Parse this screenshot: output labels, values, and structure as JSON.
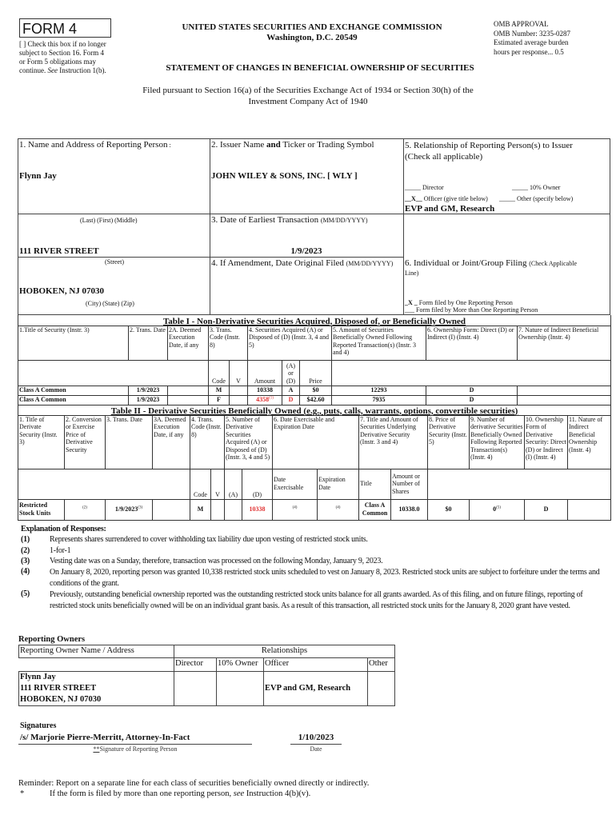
{
  "header": {
    "form_label": "FORM 4",
    "check_box_note": [
      "[ ] Check this box if no longer",
      "subject to Section 16. Form 4",
      "or Form 5 obligations may",
      "continue. "
    ],
    "check_box_see": "See",
    "check_box_tail": " Instruction 1(b).",
    "agency": "UNITED STATES SECURITIES AND EXCHANGE COMMISSION",
    "agency_city": "Washington, D.C. 20549",
    "omb": [
      "OMB APPROVAL",
      "OMB Number: 3235-0287",
      "Estimated average burden",
      "hours per response... 0.5"
    ],
    "statement_title": "STATEMENT OF CHANGES IN BENEFICIAL OWNERSHIP OF SECURITIES",
    "filed_pursuant": [
      "Filed pursuant to Section 16(a) of the Securities Exchange Act of 1934 or Section 30(h) of the",
      "Investment Company Act of 1940"
    ]
  },
  "box1": {
    "label": "1. Name and Address of Reporting Person",
    "label_colon": " :",
    "name": "Flynn Jay",
    "name_hint": "(Last)  (First)  (Middle)",
    "street": "111 RIVER STREET",
    "street_hint": "(Street)",
    "city": "HOBOKEN, NJ 07030",
    "city_hint": "(City)  (State)  (Zip)"
  },
  "box2": {
    "label_a": "2. Issuer Name ",
    "label_and": "and",
    "label_b": " Ticker or Trading Symbol",
    "issuer": "JOHN WILEY & SONS, INC. [ WLY ]"
  },
  "box3": {
    "label": "3. Date of Earliest Transaction ",
    "label_small": "(MM/DD/YYYY)",
    "date": "1/9/2023"
  },
  "box4": {
    "label": "4. If Amendment, Date Original Filed ",
    "label_small": "(MM/DD/YYYY)"
  },
  "box5": {
    "label": [
      "5. Relationship of Reporting Person(s) to Issuer",
      "(Check all applicable)"
    ],
    "director": "_____ Director",
    "ten_pct_owner": "_____ 10% Owner",
    "officer_mark": "__X__",
    "officer": " Officer (give title below)",
    "other": "_____ Other (specify below)",
    "title": "EVP and GM, Research"
  },
  "box6": {
    "label": "6. Individual or Joint/Group Filing ",
    "label_small": "(Check Applicable",
    "label_small2": "Line)",
    "one_person_mark": "_X _",
    "one_person": " Form filed by One Reporting Person",
    "multi_person": "___ Form filed by More than One Reporting Person"
  },
  "table1": {
    "title": "Table I - Non-Derivative Securities Acquired, Disposed of, or Beneficially Owned",
    "headers": [
      "1.Title of Security (Instr. 3)",
      "2. Trans. Date",
      "2A. Deemed Execution Date, if any",
      "3. Trans. Code (Instr. 8)",
      "4. Securities Acquired (A) or Disposed of (D) (Instr. 3, 4 and 5)",
      "5. Amount of Securities Beneficially Owned Following Reported Transaction(s) (Instr. 3 and 4)",
      "6. Ownership Form: Direct (D) or Indirect (I) (Instr. 4)",
      "7. Nature of Indirect Beneficial Ownership (Instr. 4)"
    ],
    "sub_headers": {
      "code": "Code",
      "v": "V",
      "amount": "Amount",
      "a_or_d": "(A) or (D)",
      "price": "Price"
    },
    "rows": [
      {
        "title": "Class A Common",
        "date": "1/9/2023",
        "deemed": "",
        "code": "M",
        "v": "",
        "amount": "10338",
        "amount_fn": "",
        "a_or_d": "A",
        "price": "$0",
        "owned": "12293",
        "form": "D",
        "nature": ""
      },
      {
        "title": "Class A Common",
        "date": "1/9/2023",
        "deemed": "",
        "code": "F",
        "v": "",
        "amount": "4358",
        "amount_fn": "(1)",
        "a_or_d": "D",
        "price": "$42.60",
        "owned": "7935",
        "form": "D",
        "nature": ""
      }
    ]
  },
  "table2": {
    "title": "Table II - Derivative Securities Beneficially Owned (e.g., puts, calls, warrants, options, convertible securities)",
    "headers": [
      "1. Title of Derivate Security (Instr. 3)",
      "2. Conversion or Exercise Price of Derivative Security",
      "3. Trans. Date",
      "3A. Deemed Execution Date, if any",
      "4. Trans. Code (Instr. 8)",
      "5. Number of Derivative Securities Acquired (A) or Disposed of (D) (Instr. 3, 4 and 5)",
      "6. Date Exercisable and Expiration Date",
      "7. Title and Amount of Securities Underlying Derivative Security (Instr. 3 and 4)",
      "8. Price of Derivative Security (Instr. 5)",
      "9. Number of derivative Securities Beneficially Owned Following Reported Transaction(s) (Instr. 4)",
      "10. Ownership Form of Derivative Security: Direct (D) or Indirect (I) (Instr. 4)",
      "11. Nature of Indirect Beneficial Ownership (Instr. 4)"
    ],
    "sub_headers": {
      "code": "Code",
      "v": "V",
      "a": "(A)",
      "d": "(D)",
      "date_exercisable": "Date Exercisable",
      "expiration": "Expiration Date",
      "title": "Title",
      "amount": "Amount or Number of Shares"
    },
    "rows": [
      {
        "title": "Restricted Stock Units",
        "conversion_fn": "(2)",
        "date": "1/9/2023",
        "date_fn": "(3)",
        "deemed": "",
        "code": "M",
        "v": "",
        "a": "",
        "d": "10338",
        "exercisable_fn": "(4)",
        "expiration_fn": "(4)",
        "underlying_title": "Class A Common",
        "underlying_amount": "10338.0",
        "price": "$0",
        "owned": "0",
        "owned_fn": "(5)",
        "form": "D",
        "nature": ""
      }
    ]
  },
  "explanation": {
    "heading": "Explanation of Responses:",
    "items": [
      {
        "num": "(1)",
        "text": "Represents shares surrendered to cover withholding tax  liability due upon vesting of restricted stock units."
      },
      {
        "num": "(2)",
        "text": "1-for-1"
      },
      {
        "num": "(3)",
        "text": "Vesting date was on a Sunday, therefore, transaction was processed on the following Monday, January 9, 2023."
      },
      {
        "num": "(4)",
        "text": "On January 8, 2020, reporting person was granted 10,338 restricted stock units scheduled to vest on January 8, 2023. Restricted stock units are subject to forfeiture under the terms and conditions of the grant."
      },
      {
        "num": "(5)",
        "text": "Previously, outstanding beneficial ownership reported was the outstanding restricted stock units balance for all grants awarded. As of this filing, and on future filings, reporting of restricted stock units beneficially owned will be on an individual grant basis. As a result of this transaction, all restricted stock units for the January 8, 2020 grant have vested."
      }
    ]
  },
  "reporting_owners": {
    "heading": "Reporting Owners",
    "col_name": "Reporting Owner Name / Address",
    "col_relationships": "Relationships",
    "col_director": "Director",
    "col_owner": "10% Owner",
    "col_officer": "Officer",
    "col_other": "Other",
    "owner_lines": [
      "Flynn Jay",
      "111 RIVER STREET",
      "HOBOKEN, NJ 07030"
    ],
    "director": "",
    "ten_pct": "",
    "officer": "EVP and GM, Research",
    "other": ""
  },
  "signatures": {
    "heading": "Signatures",
    "signature": "/s/ Marjorie Pierre-Merritt, Attorney-In-Fact",
    "signature_marker": "**",
    "signature_label": "Signature of Reporting Person",
    "date": "1/10/2023",
    "date_label": "Date"
  },
  "footer": {
    "reminder": "Reminder: Report on a separate line for each class of securities beneficially owned directly or indirectly.",
    "star": "*",
    "star_text_a": "If the form is filed by more than one reporting person, ",
    "star_see": "see",
    "star_text_b": " Instruction 4(b)(v)."
  },
  "colors": {
    "highlight_red": "#e03030",
    "border": "#444444"
  }
}
